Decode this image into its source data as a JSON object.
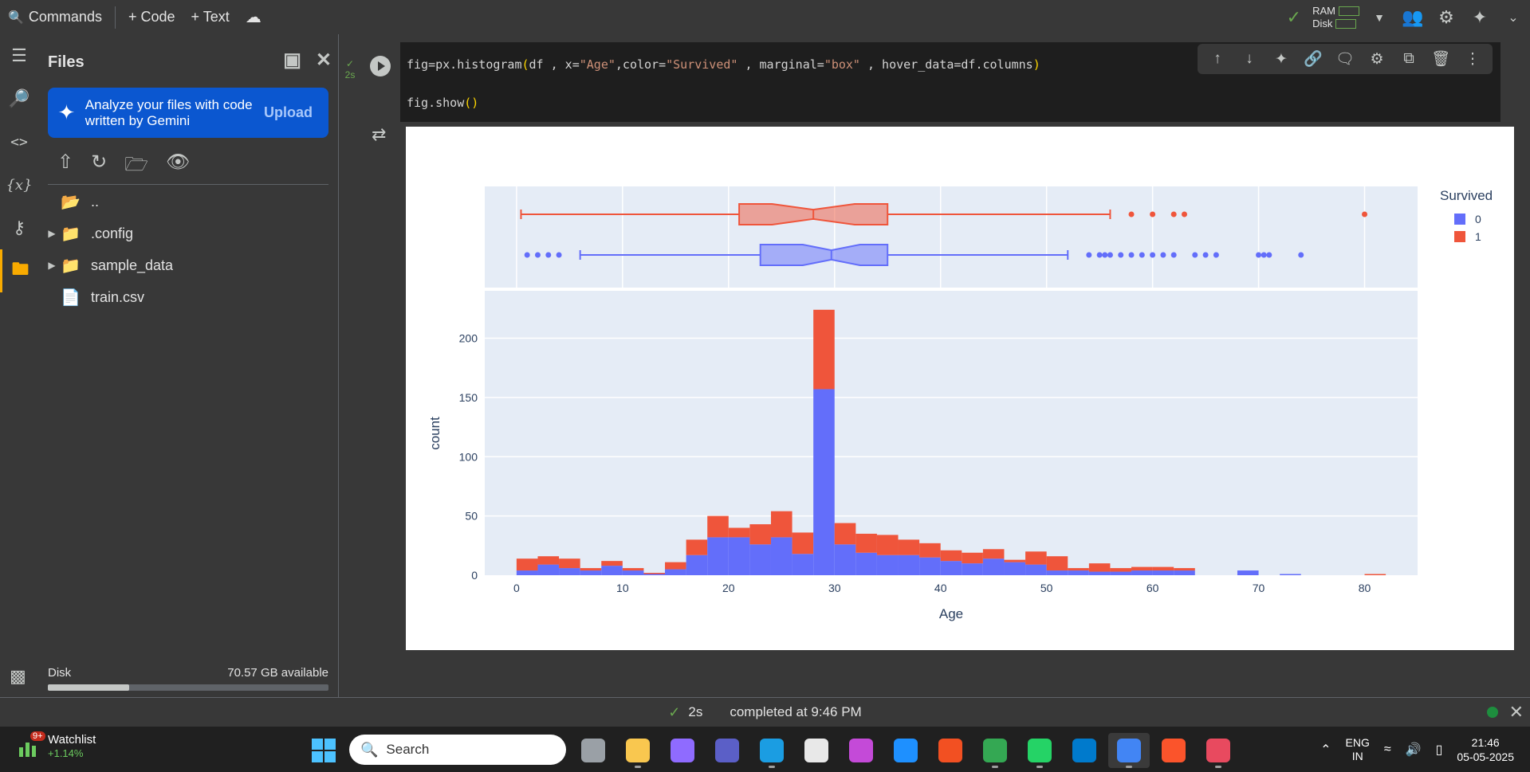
{
  "topbar": {
    "commands": "Commands",
    "add_code": "+ Code",
    "add_text": "+ Text",
    "ram_label": "RAM",
    "disk_label": "Disk"
  },
  "files_panel": {
    "title": "Files",
    "gemini_text": "Analyze your files with code written by Gemini",
    "upload": "Upload",
    "items": [
      {
        "name": "..",
        "type": "folder-open",
        "expandable": false
      },
      {
        "name": ".config",
        "type": "folder",
        "expandable": true
      },
      {
        "name": "sample_data",
        "type": "folder",
        "expandable": true
      },
      {
        "name": "train.csv",
        "type": "file",
        "expandable": false
      }
    ],
    "disk_label": "Disk",
    "disk_available": "70.57 GB available",
    "disk_used_fraction": 0.29
  },
  "cell": {
    "status_time": "2s",
    "code_line1_parts": [
      "fig=px.histogram",
      "(",
      "df , x=",
      "\"Age\"",
      ",color=",
      "\"Survived\"",
      " , marginal=",
      "\"box\"",
      " , hover_data=df.columns",
      ")"
    ],
    "code_line2_parts": [
      "fig.show",
      "()"
    ]
  },
  "chart_data": {
    "type": "bar",
    "barmode": "stack",
    "xlabel": "Age",
    "ylabel": "count",
    "xlim": [
      -3,
      85
    ],
    "ylim": [
      0,
      240
    ],
    "x_ticks": [
      0,
      10,
      20,
      30,
      40,
      50,
      60,
      70,
      80
    ],
    "y_ticks": [
      0,
      50,
      100,
      150,
      200
    ],
    "legend_title": "Survived",
    "legend_position": "right",
    "bin_width": 2,
    "bin_start": 0,
    "series": [
      {
        "name": "0",
        "color": "#636efa",
        "values": [
          4,
          9,
          6,
          4,
          8,
          4,
          1,
          5,
          17,
          32,
          32,
          26,
          32,
          18,
          157,
          26,
          19,
          17,
          17,
          15,
          12,
          10,
          14,
          11,
          9,
          4,
          4,
          3,
          3,
          4,
          4,
          4,
          0,
          0,
          4,
          0,
          1,
          0,
          0,
          0,
          0
        ]
      },
      {
        "name": "1",
        "color": "#ef553b",
        "values": [
          10,
          7,
          8,
          2,
          4,
          2,
          1,
          6,
          13,
          18,
          8,
          17,
          22,
          18,
          67,
          18,
          16,
          17,
          13,
          12,
          9,
          9,
          8,
          2,
          11,
          12,
          2,
          7,
          3,
          3,
          3,
          2,
          0,
          0,
          0,
          0,
          0,
          0,
          0,
          0,
          1
        ]
      }
    ],
    "box_plots": [
      {
        "name": "1",
        "color": "#ef553b",
        "min": 0.42,
        "q1": 21,
        "median": 28,
        "q3": 35,
        "max": 56,
        "notch": 1.3,
        "outliers": [
          58,
          60,
          62,
          63,
          80
        ]
      },
      {
        "name": "0",
        "color": "#636efa",
        "min": 6,
        "q1": 23,
        "median": 29.7,
        "q3": 35,
        "max": 52,
        "notch": 0.9,
        "outliers": [
          1,
          2,
          3,
          4,
          54,
          55,
          55.5,
          56,
          57,
          58,
          59,
          60,
          61,
          62,
          64,
          65,
          66,
          70,
          70.5,
          71,
          74
        ]
      }
    ]
  },
  "statusbar": {
    "time": "2s",
    "completed": "completed at 9:46 PM"
  },
  "taskbar": {
    "watchlist": "Watchlist",
    "watchlist_change": "+1.14%",
    "watchlist_badge": "9+",
    "search_placeholder": "Search",
    "lang1": "ENG",
    "lang2": "IN",
    "time": "21:46",
    "date": "05-05-2025",
    "apps": [
      {
        "name": "task-view",
        "color": "#9aa0a6"
      },
      {
        "name": "file-explorer",
        "color": "#f9c74f"
      },
      {
        "name": "copilot",
        "color": "#8f6bff"
      },
      {
        "name": "teams",
        "color": "#5b5fc7"
      },
      {
        "name": "edge",
        "color": "#1b9de2"
      },
      {
        "name": "store",
        "color": "#e8e8e8"
      },
      {
        "name": "m365",
        "color": "#c44ad8"
      },
      {
        "name": "help",
        "color": "#1e90ff"
      },
      {
        "name": "photos",
        "color": "#f25022"
      },
      {
        "name": "chrome",
        "color": "#34a853"
      },
      {
        "name": "whatsapp",
        "color": "#25d366"
      },
      {
        "name": "vscode",
        "color": "#007acc"
      },
      {
        "name": "chrome-profile",
        "color": "#4285f4"
      },
      {
        "name": "brave",
        "color": "#fb542b"
      },
      {
        "name": "photos-app",
        "color": "#e84a5f"
      }
    ]
  }
}
